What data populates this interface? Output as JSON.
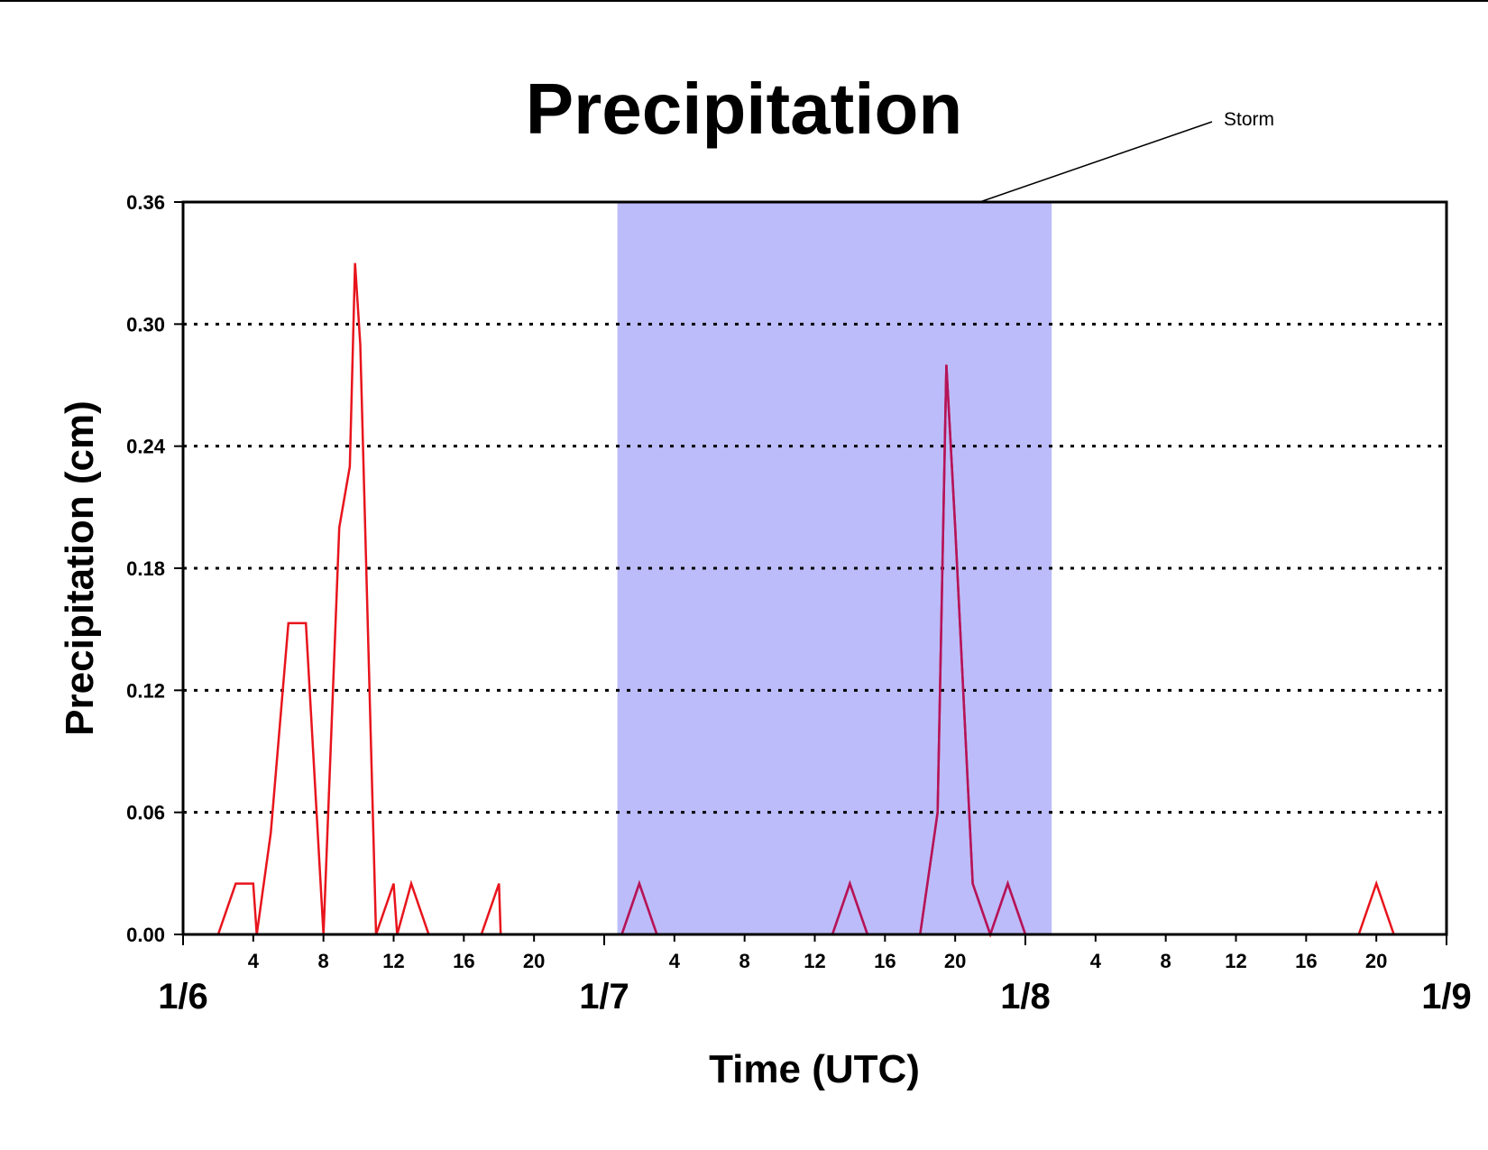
{
  "chart_data": {
    "type": "line",
    "title": "Precipitation",
    "xlabel": "Time (UTC)",
    "ylabel": "Precipitation (cm)",
    "annotation": "Storm",
    "xlim": [
      0,
      72
    ],
    "ylim": [
      0,
      0.36
    ],
    "y_ticks": [
      "0.00",
      "0.06",
      "0.12",
      "0.18",
      "0.24",
      "0.30",
      "0.36"
    ],
    "y_tick_values": [
      0,
      0.06,
      0.12,
      0.18,
      0.24,
      0.3,
      0.36
    ],
    "day_labels": [
      "1/6",
      "1/7",
      "1/8",
      "1/9"
    ],
    "hour_labels": [
      "4",
      "8",
      "12",
      "16",
      "20"
    ],
    "grid": "dotted horizontal",
    "storm_period_hours": [
      24.75,
      49.5
    ],
    "colors": {
      "line": "#e8141c",
      "storm_band": "#bcbcfa",
      "axis": "#000000"
    },
    "series": [
      {
        "x": [
          0,
          2,
          3,
          4,
          4.2,
          5,
          6,
          7,
          8,
          8.9,
          9.5,
          9.8,
          10.1,
          11,
          12,
          12.2,
          13,
          14,
          17,
          18,
          18.1,
          25,
          26,
          27,
          37,
          38,
          39,
          42,
          43,
          43.5,
          44,
          45,
          46,
          47,
          48,
          49,
          56,
          67,
          68,
          69,
          72
        ],
        "y": [
          0,
          0,
          0.025,
          0.025,
          0,
          0.05,
          0.153,
          0.153,
          0,
          0.2,
          0.23,
          0.33,
          0.29,
          0,
          0.025,
          0,
          0.025,
          0,
          0,
          0.025,
          0,
          0,
          0.025,
          0,
          0,
          0.025,
          0,
          0,
          0.06,
          0.28,
          0.2,
          0.025,
          0,
          0.025,
          0,
          0,
          0,
          0,
          0.025,
          0,
          0
        ]
      }
    ]
  }
}
